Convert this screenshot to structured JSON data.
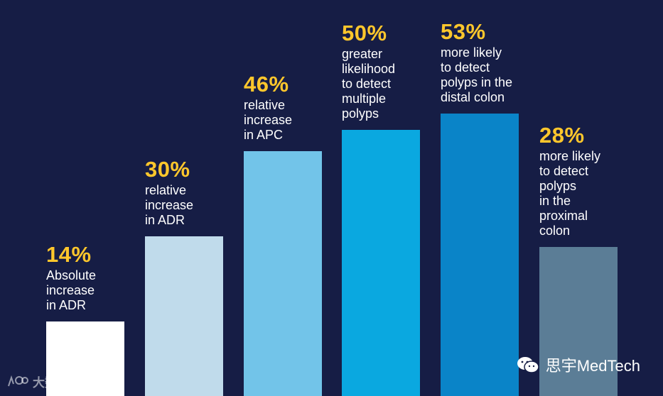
{
  "chart_data": {
    "type": "bar",
    "categories": [
      "Absolute increase in ADR",
      "relative increase in ADR",
      "relative increase in APC",
      "greater likelihood to detect multiple polyps",
      "more likely to detect polyps in the distal colon",
      "more likely to detect polyps in the proximal colon"
    ],
    "values": [
      14,
      30,
      46,
      50,
      53,
      28
    ],
    "value_labels": [
      "14%",
      "30%",
      "46%",
      "50%",
      "53%",
      "28%"
    ],
    "descriptions": [
      "Absolute\nincrease\nin ADR",
      "relative\nincrease\nin ADR",
      "relative\nincrease\nin APC",
      "greater\nlikelihood\nto detect\nmultiple\npolyps",
      "more likely\nto detect\npolyps in the\ndistal colon",
      "more likely\nto detect\npolyps\nin the\nproximal\ncolon"
    ],
    "bar_colors": [
      "#ffffff",
      "#c0dbeb",
      "#72c4e9",
      "#0aa8e0",
      "#0a84c8",
      "#5b7d96"
    ],
    "value_color": "#ffc72c",
    "background": "#161d45",
    "ylim": [
      0,
      53
    ],
    "grid": false,
    "legend": "none"
  },
  "watermark": {
    "text": "思宇MedTech",
    "icon": "wechat-icon"
  },
  "corner_mark": {
    "text": "大数跨境",
    "icon": "logo-icon"
  }
}
